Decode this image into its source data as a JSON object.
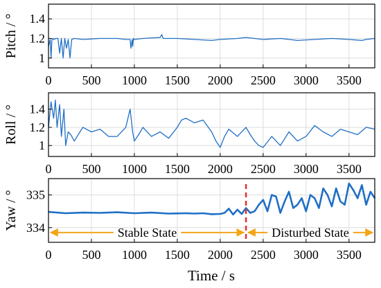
{
  "chart_data": [
    {
      "type": "line",
      "ylabel": "Pitch / °",
      "xlim": [
        0,
        3800
      ],
      "ylim": [
        0.9,
        1.55
      ],
      "x_ticks": [
        0,
        500,
        1000,
        1500,
        2000,
        2500,
        3000,
        3500
      ],
      "y_ticks": [
        1,
        1.2,
        1.4
      ],
      "grid": true,
      "series": [
        {
          "color": "#1f6fc5",
          "x": [
            0,
            20,
            30,
            40,
            55,
            60,
            90,
            110,
            130,
            150,
            170,
            190,
            210,
            230,
            250,
            270,
            300,
            400,
            600,
            800,
            900,
            950,
            960,
            975,
            980,
            990,
            1000,
            1100,
            1300,
            1320,
            1330,
            1340,
            1500,
            1700,
            1900,
            2000,
            2200,
            2300,
            2500,
            2700,
            2900,
            3100,
            3300,
            3500,
            3650,
            3700,
            3800
          ],
          "y": [
            1.12,
            1.19,
            1.0,
            1.19,
            1.2,
            1.19,
            1.2,
            1.2,
            1.05,
            1.2,
            1.0,
            1.2,
            1.1,
            1.19,
            1.0,
            1.19,
            1.2,
            1.19,
            1.2,
            1.2,
            1.19,
            1.19,
            1.1,
            1.19,
            1.12,
            1.2,
            1.19,
            1.2,
            1.21,
            1.24,
            1.21,
            1.2,
            1.2,
            1.19,
            1.18,
            1.19,
            1.2,
            1.21,
            1.19,
            1.2,
            1.18,
            1.19,
            1.2,
            1.19,
            1.18,
            1.19,
            1.2
          ]
        }
      ]
    },
    {
      "type": "line",
      "ylabel": "Roll / °",
      "xlim": [
        0,
        3800
      ],
      "ylim": [
        0.88,
        1.58
      ],
      "x_ticks": [
        0,
        500,
        1000,
        1500,
        2000,
        2500,
        3000,
        3500
      ],
      "y_ticks": [
        1,
        1.2,
        1.4
      ],
      "grid": true,
      "series": [
        {
          "color": "#1f6fc5",
          "x": [
            0,
            30,
            60,
            80,
            100,
            130,
            150,
            180,
            200,
            230,
            260,
            300,
            400,
            500,
            600,
            700,
            800,
            900,
            950,
            980,
            1000,
            1050,
            1100,
            1200,
            1300,
            1400,
            1500,
            1550,
            1600,
            1700,
            1800,
            1900,
            1950,
            2000,
            2050,
            2100,
            2200,
            2300,
            2350,
            2400,
            2450,
            2500,
            2600,
            2700,
            2800,
            2900,
            3000,
            3100,
            3200,
            3300,
            3400,
            3500,
            3600,
            3700,
            3800
          ],
          "y": [
            1.2,
            1.48,
            1.3,
            1.5,
            1.2,
            1.45,
            1.1,
            1.4,
            1.0,
            1.15,
            1.12,
            1.05,
            1.2,
            1.15,
            1.18,
            1.1,
            1.1,
            1.2,
            1.4,
            1.15,
            1.05,
            1.12,
            1.2,
            1.1,
            1.15,
            1.08,
            1.2,
            1.28,
            1.3,
            1.25,
            1.28,
            1.15,
            1.05,
            0.98,
            1.1,
            1.18,
            1.1,
            1.2,
            1.12,
            1.05,
            1.0,
            0.98,
            1.1,
            1.0,
            1.15,
            1.05,
            1.1,
            1.22,
            1.15,
            1.1,
            1.18,
            1.15,
            1.12,
            1.2,
            1.18
          ]
        }
      ]
    },
    {
      "type": "line",
      "ylabel": "Yaw / °",
      "xlabel": "Time / s",
      "xlim": [
        0,
        3800
      ],
      "ylim": [
        333.55,
        335.5
      ],
      "x_ticks": [
        0,
        500,
        1000,
        1500,
        2000,
        2500,
        3000,
        3500
      ],
      "y_ticks": [
        334,
        335
      ],
      "grid": true,
      "series": [
        {
          "color": "#1f6fc5",
          "x": [
            0,
            200,
            400,
            600,
            800,
            1000,
            1200,
            1400,
            1600,
            1700,
            1800,
            1900,
            2000,
            2050,
            2100,
            2150,
            2200,
            2250,
            2300,
            2350,
            2400,
            2450,
            2500,
            2550,
            2600,
            2650,
            2700,
            2750,
            2800,
            2850,
            2900,
            2950,
            3000,
            3050,
            3100,
            3150,
            3200,
            3250,
            3300,
            3350,
            3400,
            3450,
            3500,
            3550,
            3600,
            3650,
            3700,
            3750,
            3800
          ],
          "y": [
            334.48,
            334.44,
            334.46,
            334.45,
            334.47,
            334.44,
            334.46,
            334.43,
            334.44,
            334.43,
            334.44,
            334.41,
            334.42,
            334.45,
            334.58,
            334.4,
            334.55,
            334.42,
            334.6,
            334.45,
            334.5,
            334.7,
            334.85,
            334.5,
            335.0,
            334.95,
            334.45,
            334.8,
            335.1,
            334.6,
            334.7,
            334.9,
            334.5,
            335.0,
            334.9,
            334.6,
            335.2,
            335.0,
            334.65,
            335.2,
            334.8,
            334.7,
            335.35,
            335.15,
            334.9,
            335.3,
            334.7,
            335.1,
            334.9
          ]
        }
      ],
      "marker_x": 2300,
      "marker_color": "#e8302a",
      "annotations": [
        {
          "text": "Stable State",
          "from_x": 0,
          "to_x": 2300,
          "y": 333.85,
          "color": "#f2a516"
        },
        {
          "text": "Disturbed State",
          "from_x": 2300,
          "to_x": 3800,
          "y": 333.85,
          "color": "#f2a516"
        }
      ]
    }
  ]
}
